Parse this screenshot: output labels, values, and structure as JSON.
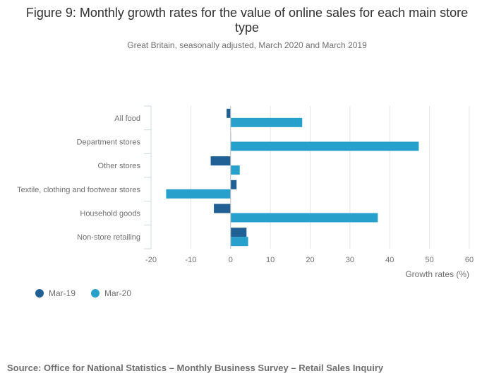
{
  "chart_data": {
    "type": "bar",
    "orientation": "horizontal",
    "title": "Figure 9: Monthly growth rates for the value of online sales for each main store type",
    "subtitle": "Great Britain, seasonally adjusted, March 2020 and March 2019",
    "categories": [
      "All food",
      "Department stores",
      "Other stores",
      "Textile, clothing and footwear stores",
      "Household goods",
      "Non-store retailing"
    ],
    "series": [
      {
        "name": "Mar-19",
        "color": "#206095",
        "values": [
          -1,
          0,
          -5,
          1.5,
          -4.2,
          4
        ]
      },
      {
        "name": "Mar-20",
        "color": "#27a0cc",
        "values": [
          18,
          47.3,
          2.3,
          -16.2,
          37,
          4.4
        ]
      }
    ],
    "xlabel": "Growth rates (%)",
    "xlim": [
      -20,
      60
    ],
    "xticks": [
      -20,
      -10,
      0,
      10,
      20,
      30,
      40,
      50,
      60
    ],
    "grid": true,
    "legend": "bottom-left"
  },
  "source": "Source: Office for National Statistics – Monthly Business Survey – Retail Sales Inquiry"
}
